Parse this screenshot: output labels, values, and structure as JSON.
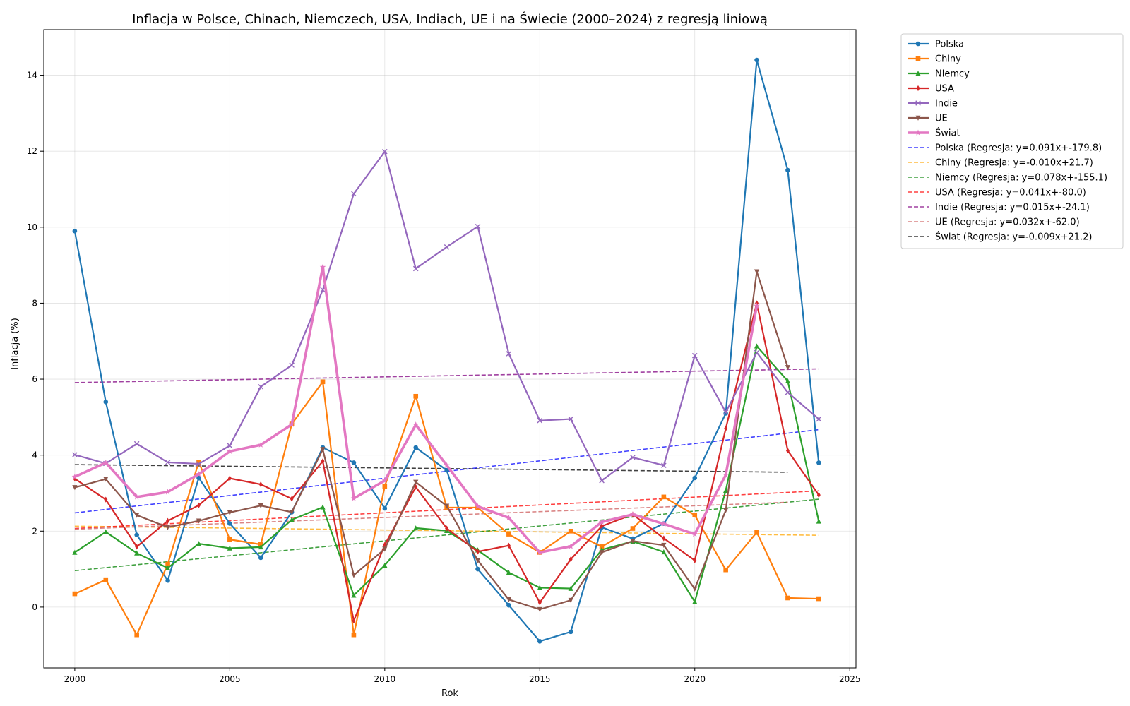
{
  "chart_data": {
    "type": "line",
    "title": "Inflacja w Polsce, Chinach, Niemczech, USA, Indiach, UE i na Świecie (2000–2024) z regresją liniową",
    "xlabel": "Rok",
    "ylabel": "Inflacja (%)",
    "xlim": [
      1999.0,
      2025.2
    ],
    "ylim": [
      -1.6,
      15.2
    ],
    "xticks": [
      2000,
      2005,
      2010,
      2015,
      2020,
      2025
    ],
    "yticks": [
      0,
      2,
      4,
      6,
      8,
      10,
      12,
      14
    ],
    "grid": true,
    "legend_position": "outside-top-right",
    "x": [
      2000,
      2001,
      2002,
      2003,
      2004,
      2005,
      2006,
      2007,
      2008,
      2009,
      2010,
      2011,
      2012,
      2013,
      2014,
      2015,
      2016,
      2017,
      2018,
      2019,
      2020,
      2021,
      2022,
      2023,
      2024
    ],
    "series": [
      {
        "name": "Polska",
        "color": "#1f77b4",
        "marker": "circle",
        "width": 2.2,
        "values": [
          9.9,
          5.4,
          1.9,
          0.7,
          3.4,
          2.2,
          1.3,
          2.5,
          4.2,
          3.8,
          2.6,
          4.2,
          3.6,
          1.0,
          0.05,
          -0.9,
          -0.65,
          2.1,
          1.8,
          2.2,
          3.4,
          5.1,
          14.4,
          11.5,
          3.8
        ]
      },
      {
        "name": "Chiny",
        "color": "#ff7f0e",
        "marker": "square",
        "width": 2.2,
        "values": [
          0.35,
          0.72,
          -0.73,
          1.13,
          3.82,
          1.78,
          1.65,
          4.82,
          5.93,
          -0.73,
          3.18,
          5.55,
          2.62,
          2.62,
          1.92,
          1.44,
          2.0,
          1.59,
          2.07,
          2.9,
          2.42,
          0.98,
          1.97,
          0.24,
          0.22
        ]
      },
      {
        "name": "Niemcy",
        "color": "#2ca02c",
        "marker": "triangle",
        "width": 2.2,
        "values": [
          1.44,
          1.98,
          1.42,
          1.03,
          1.67,
          1.55,
          1.58,
          2.3,
          2.63,
          0.31,
          1.1,
          2.08,
          2.01,
          1.5,
          0.91,
          0.51,
          0.49,
          1.51,
          1.73,
          1.45,
          0.14,
          3.07,
          6.87,
          5.95,
          2.26
        ]
      },
      {
        "name": "USA",
        "color": "#d62728",
        "marker": "diamond",
        "width": 2.2,
        "values": [
          3.38,
          2.83,
          1.59,
          2.27,
          2.68,
          3.39,
          3.23,
          2.85,
          3.84,
          -0.36,
          1.64,
          3.16,
          2.07,
          1.46,
          1.62,
          0.12,
          1.26,
          2.13,
          2.44,
          1.81,
          1.23,
          4.7,
          8.0,
          4.12,
          2.95
        ]
      },
      {
        "name": "Indie",
        "color": "#9467bd",
        "marker": "x",
        "width": 2.2,
        "values": [
          4.01,
          3.78,
          4.3,
          3.81,
          3.77,
          4.25,
          5.8,
          6.37,
          8.35,
          10.88,
          11.99,
          8.91,
          9.48,
          10.02,
          6.67,
          4.91,
          4.95,
          3.33,
          3.94,
          3.73,
          6.62,
          5.13,
          6.7,
          5.65,
          4.95
        ]
      },
      {
        "name": "UE",
        "color": "#8c564b",
        "marker": "triangle-down",
        "width": 2.2,
        "values": [
          3.15,
          3.37,
          2.42,
          2.1,
          2.27,
          2.49,
          2.67,
          2.5,
          4.15,
          0.84,
          1.53,
          3.29,
          2.66,
          1.23,
          0.2,
          -0.06,
          0.18,
          1.44,
          1.74,
          1.63,
          0.48,
          2.55,
          8.83,
          6.31,
          null
        ]
      },
      {
        "name": "Świat",
        "color": "#e377c2",
        "marker": "star",
        "width": 3.6,
        "values": [
          3.43,
          3.8,
          2.9,
          3.03,
          3.5,
          4.1,
          4.27,
          4.81,
          8.95,
          2.86,
          3.33,
          4.8,
          3.73,
          2.65,
          2.35,
          1.44,
          1.6,
          2.24,
          2.44,
          2.19,
          1.92,
          3.48,
          7.93,
          null,
          null
        ]
      }
    ],
    "regressions": [
      {
        "name": "Polska (Regresja: y=0.091x+-179.8)",
        "color": "#0000ff",
        "x": [
          2000,
          2024
        ],
        "y": [
          2.48,
          4.67
        ]
      },
      {
        "name": "Chiny (Regresja: y=-0.010x+21.7)",
        "color": "#ffa500",
        "x": [
          2000,
          2024
        ],
        "y": [
          2.13,
          1.89
        ]
      },
      {
        "name": "Niemcy (Regresja: y=0.078x+-155.1)",
        "color": "#008000",
        "x": [
          2000,
          2024
        ],
        "y": [
          0.96,
          2.84
        ]
      },
      {
        "name": "USA (Regresja: y=0.041x+-80.0)",
        "color": "#ff0000",
        "x": [
          2000,
          2024
        ],
        "y": [
          2.07,
          3.06
        ]
      },
      {
        "name": "Indie (Regresja: y=0.015x+-24.1)",
        "color": "#800080",
        "x": [
          2000,
          2024
        ],
        "y": [
          5.91,
          6.27
        ]
      },
      {
        "name": "UE (Regresja: y=0.032x+-62.0)",
        "color": "#cd5c5c",
        "x": [
          2000,
          2023
        ],
        "y": [
          2.05,
          2.76
        ]
      },
      {
        "name": "Świat (Regresja: y=-0.009x+21.2)",
        "color": "#000000",
        "x": [
          2000,
          2023
        ],
        "y": [
          3.75,
          3.55
        ]
      }
    ]
  }
}
